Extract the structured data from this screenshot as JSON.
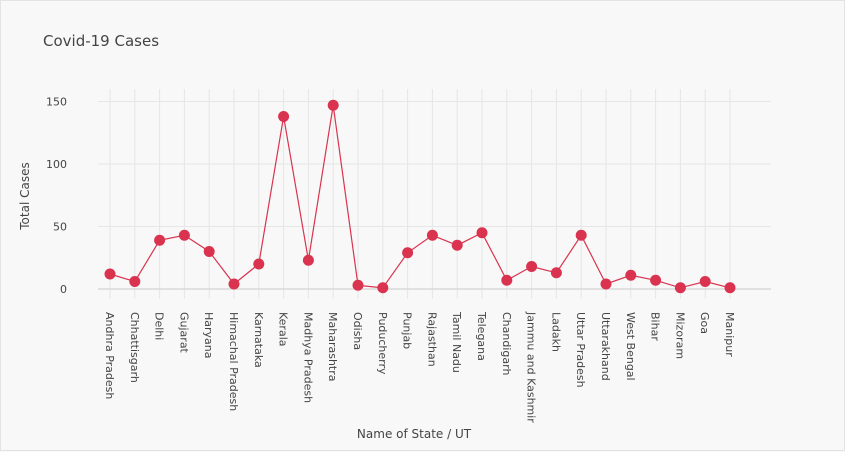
{
  "chart_data": {
    "type": "line",
    "title": "Covid-19 Cases",
    "xlabel": "Name of State / UT",
    "ylabel": "Total Cases",
    "categories": [
      "Andhra Pradesh",
      "Chhattisgarh",
      "Delhi",
      "Gujarat",
      "Haryana",
      "Himachal Pradesh",
      "Karnataka",
      "Kerala",
      "Madhya Pradesh",
      "Maharashtra",
      "Odisha",
      "Puducherry",
      "Punjab",
      "Rajasthan",
      "Tamil Nadu",
      "Telegana",
      "Chandigarh",
      "Jammu and Kashmir",
      "Ladakh",
      "Uttar Pradesh",
      "Uttarakhand",
      "West Bengal",
      "Bihar",
      "Mizoram",
      "Goa",
      "Manipur"
    ],
    "values": [
      12,
      6,
      39,
      43,
      30,
      4,
      20,
      138,
      23,
      147,
      3,
      1,
      29,
      43,
      35,
      45,
      7,
      18,
      13,
      43,
      4,
      11,
      7,
      1,
      6,
      1
    ],
    "ylim": [
      -8,
      160
    ],
    "yticks": [
      0,
      50,
      100,
      150
    ],
    "grid": true,
    "legend": "none",
    "colors": {
      "series": "#d9334f",
      "grid": "#e6e6e6",
      "text": "#444444",
      "background": "#f8f8f8"
    }
  }
}
